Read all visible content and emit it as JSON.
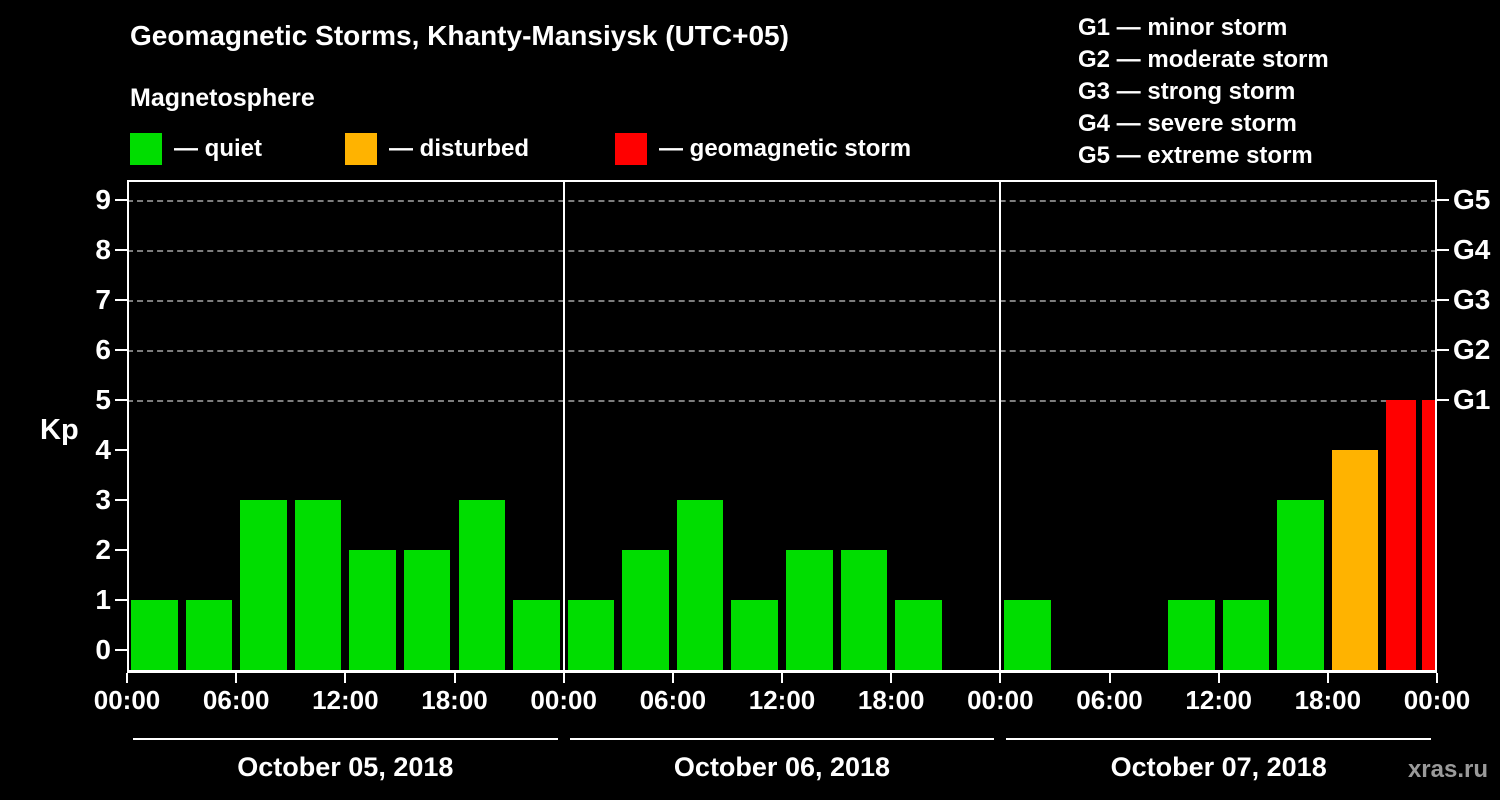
{
  "header": {
    "title": "Geomagnetic Storms, Khanty-Mansiysk (UTC+05)",
    "subtitle": "Magnetosphere"
  },
  "legend": {
    "items": [
      {
        "label": "— quiet",
        "color": "#00dd00"
      },
      {
        "label": "— disturbed",
        "color": "#ffb300"
      },
      {
        "label": "— geomagnetic storm",
        "color": "#ff0000"
      }
    ]
  },
  "storm_scale": {
    "items": [
      "G1 — minor storm",
      "G2 — moderate storm",
      "G3 — strong storm",
      "G4 — severe storm",
      "G5 — extreme storm"
    ]
  },
  "watermark": "xras.ru",
  "chart_data": {
    "type": "bar",
    "title": "Geomagnetic Storms, Khanty-Mansiysk (UTC+05)",
    "ylabel": "Kp",
    "ylim": [
      0,
      9
    ],
    "y_ticks": [
      0,
      1,
      2,
      3,
      4,
      5,
      6,
      7,
      8,
      9
    ],
    "grid_levels": [
      5,
      6,
      7,
      8,
      9
    ],
    "right_axis": [
      {
        "kp": 5,
        "label": "G1"
      },
      {
        "kp": 6,
        "label": "G2"
      },
      {
        "kp": 7,
        "label": "G3"
      },
      {
        "kp": 8,
        "label": "G4"
      },
      {
        "kp": 9,
        "label": "G5"
      }
    ],
    "x_tick_labels": [
      "00:00",
      "06:00",
      "12:00",
      "18:00",
      "00:00",
      "06:00",
      "12:00",
      "18:00",
      "00:00",
      "06:00",
      "12:00",
      "18:00",
      "00:00"
    ],
    "interval_hours": 3,
    "days": [
      {
        "date": "October 05, 2018",
        "values": [
          1,
          1,
          3,
          3,
          2,
          2,
          3,
          1
        ]
      },
      {
        "date": "October 06, 2018",
        "values": [
          1,
          2,
          3,
          1,
          2,
          2,
          1,
          0
        ]
      },
      {
        "date": "October 07, 2018",
        "values": [
          1,
          0,
          0,
          1,
          1,
          3,
          4,
          5
        ]
      }
    ],
    "next_day_partial_value": 5,
    "colors": {
      "quiet": "#00dd00",
      "disturbed": "#ffb300",
      "storm": "#ff0000",
      "grid": "#7d7d7d",
      "axis": "#ffffff"
    },
    "color_thresholds": {
      "disturbed_at": 4,
      "storm_at": 5
    },
    "legend_position": "top-left",
    "grid": "dashed horizontal at G levels only"
  }
}
